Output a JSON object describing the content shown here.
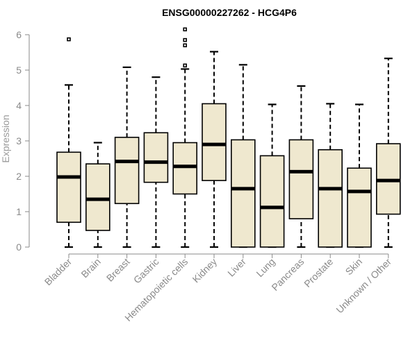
{
  "chart_data": {
    "type": "boxplot",
    "title": "ENSG00000227262 - HCG4P6",
    "xlabel": "",
    "ylabel": "Expression",
    "ylim": [
      0,
      6
    ],
    "yticks": [
      0,
      1,
      2,
      3,
      4,
      5,
      6
    ],
    "box_color": "#efe8cf",
    "grid": false,
    "categories": [
      "Bladder",
      "Brain",
      "Breast",
      "Gastric",
      "Hematopoietic cells",
      "Kidney",
      "Liver",
      "Lung",
      "Pancreas",
      "Prostate",
      "Skin",
      "Unknown / Other"
    ],
    "boxes": [
      {
        "min": 0,
        "q1": 0.7,
        "median": 1.98,
        "q3": 2.68,
        "max": 4.58,
        "outliers": [
          5.87
        ]
      },
      {
        "min": 0,
        "q1": 0.47,
        "median": 1.35,
        "q3": 2.35,
        "max": 2.95,
        "outliers": []
      },
      {
        "min": 0,
        "q1": 1.23,
        "median": 2.42,
        "q3": 3.1,
        "max": 5.08,
        "outliers": []
      },
      {
        "min": 0,
        "q1": 1.83,
        "median": 2.4,
        "q3": 3.23,
        "max": 4.8,
        "outliers": []
      },
      {
        "min": 0,
        "q1": 1.5,
        "median": 2.28,
        "q3": 2.95,
        "max": 5.03,
        "outliers": [
          5.13,
          5.7,
          5.85,
          6.15
        ]
      },
      {
        "min": 0,
        "q1": 1.88,
        "median": 2.9,
        "q3": 4.05,
        "max": 5.52,
        "outliers": []
      },
      {
        "min": 0,
        "q1": 0,
        "median": 1.65,
        "q3": 3.03,
        "max": 5.15,
        "outliers": []
      },
      {
        "min": 0,
        "q1": 0,
        "median": 1.12,
        "q3": 2.58,
        "max": 4.03,
        "outliers": []
      },
      {
        "min": 0,
        "q1": 0.8,
        "median": 2.13,
        "q3": 3.03,
        "max": 4.55,
        "outliers": []
      },
      {
        "min": 0,
        "q1": 0,
        "median": 1.65,
        "q3": 2.75,
        "max": 4.05,
        "outliers": []
      },
      {
        "min": 0,
        "q1": 0,
        "median": 1.57,
        "q3": 2.23,
        "max": 4.03,
        "outliers": []
      },
      {
        "min": 0,
        "q1": 0.93,
        "median": 1.88,
        "q3": 2.92,
        "max": 5.33,
        "outliers": []
      }
    ]
  }
}
